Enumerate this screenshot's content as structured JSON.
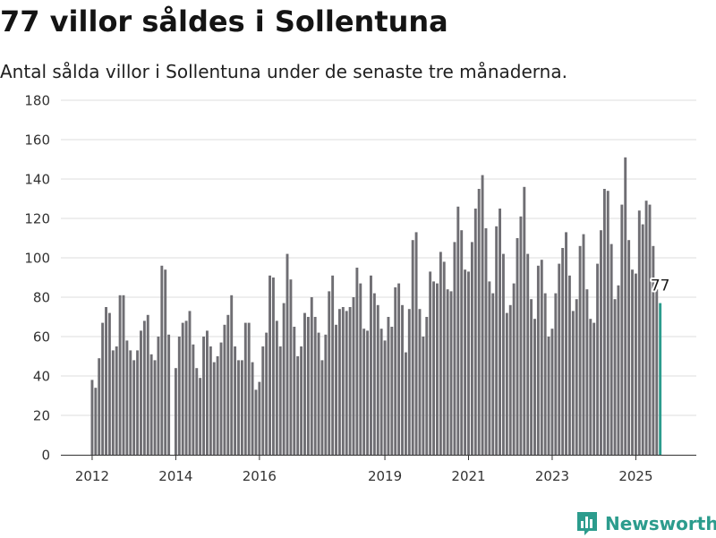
{
  "title": "77 villor såldes i Sollentuna",
  "subtitle": "Antal sålda villor i Sollentuna under de senaste tre månaderna.",
  "brand": {
    "name": "Newsworthy",
    "icon": "newsworthy-logo-icon",
    "color": "#2c9c8d"
  },
  "chart_data": {
    "type": "bar",
    "title": "",
    "xlabel": "",
    "ylabel": "",
    "ylim": [
      0,
      180
    ],
    "yticks": [
      0,
      20,
      40,
      60,
      80,
      100,
      120,
      140,
      160,
      180
    ],
    "xticks": [
      {
        "label": "2012",
        "x": "2012-01"
      },
      {
        "label": "2014",
        "x": "2014-01"
      },
      {
        "label": "2016",
        "x": "2016-01"
      },
      {
        "label": "2019",
        "x": "2019-01"
      },
      {
        "label": "2021",
        "x": "2021-01"
      },
      {
        "label": "2023",
        "x": "2023-01"
      },
      {
        "label": "2025",
        "x": "2025-01"
      }
    ],
    "grid": true,
    "legend": "none",
    "bar_color": "#6f6e73",
    "highlight_color": "#2c9c8d",
    "highlight_label": "77",
    "x_start": "2012-01",
    "x_end": "2025-08",
    "values": [
      38,
      34,
      49,
      67,
      75,
      72,
      53,
      55,
      81,
      81,
      58,
      53,
      48,
      53,
      63,
      68,
      71,
      51,
      48,
      60,
      96,
      94,
      61,
      0,
      44,
      60,
      67,
      68,
      73,
      56,
      44,
      39,
      60,
      63,
      55,
      47,
      50,
      57,
      66,
      71,
      81,
      55,
      48,
      48,
      67,
      67,
      47,
      33,
      37,
      55,
      62,
      91,
      90,
      68,
      55,
      77,
      102,
      89,
      65,
      50,
      55,
      72,
      70,
      80,
      70,
      62,
      48,
      61,
      83,
      91,
      66,
      74,
      75,
      73,
      75,
      80,
      95,
      87,
      64,
      63,
      91,
      82,
      76,
      64,
      58,
      70,
      65,
      85,
      87,
      76,
      52,
      74,
      109,
      113,
      74,
      60,
      70,
      93,
      88,
      87,
      103,
      98,
      84,
      83,
      108,
      126,
      114,
      94,
      93,
      108,
      125,
      135,
      142,
      115,
      88,
      82,
      116,
      125,
      102,
      72,
      76,
      87,
      110,
      121,
      136,
      102,
      79,
      69,
      96,
      99,
      82,
      60,
      64,
      82,
      97,
      105,
      113,
      91,
      73,
      79,
      106,
      112,
      84,
      69,
      67,
      97,
      114,
      135,
      134,
      107,
      79,
      86,
      127,
      151,
      109,
      94,
      92,
      124,
      117,
      129,
      127,
      106,
      84,
      77
    ]
  }
}
